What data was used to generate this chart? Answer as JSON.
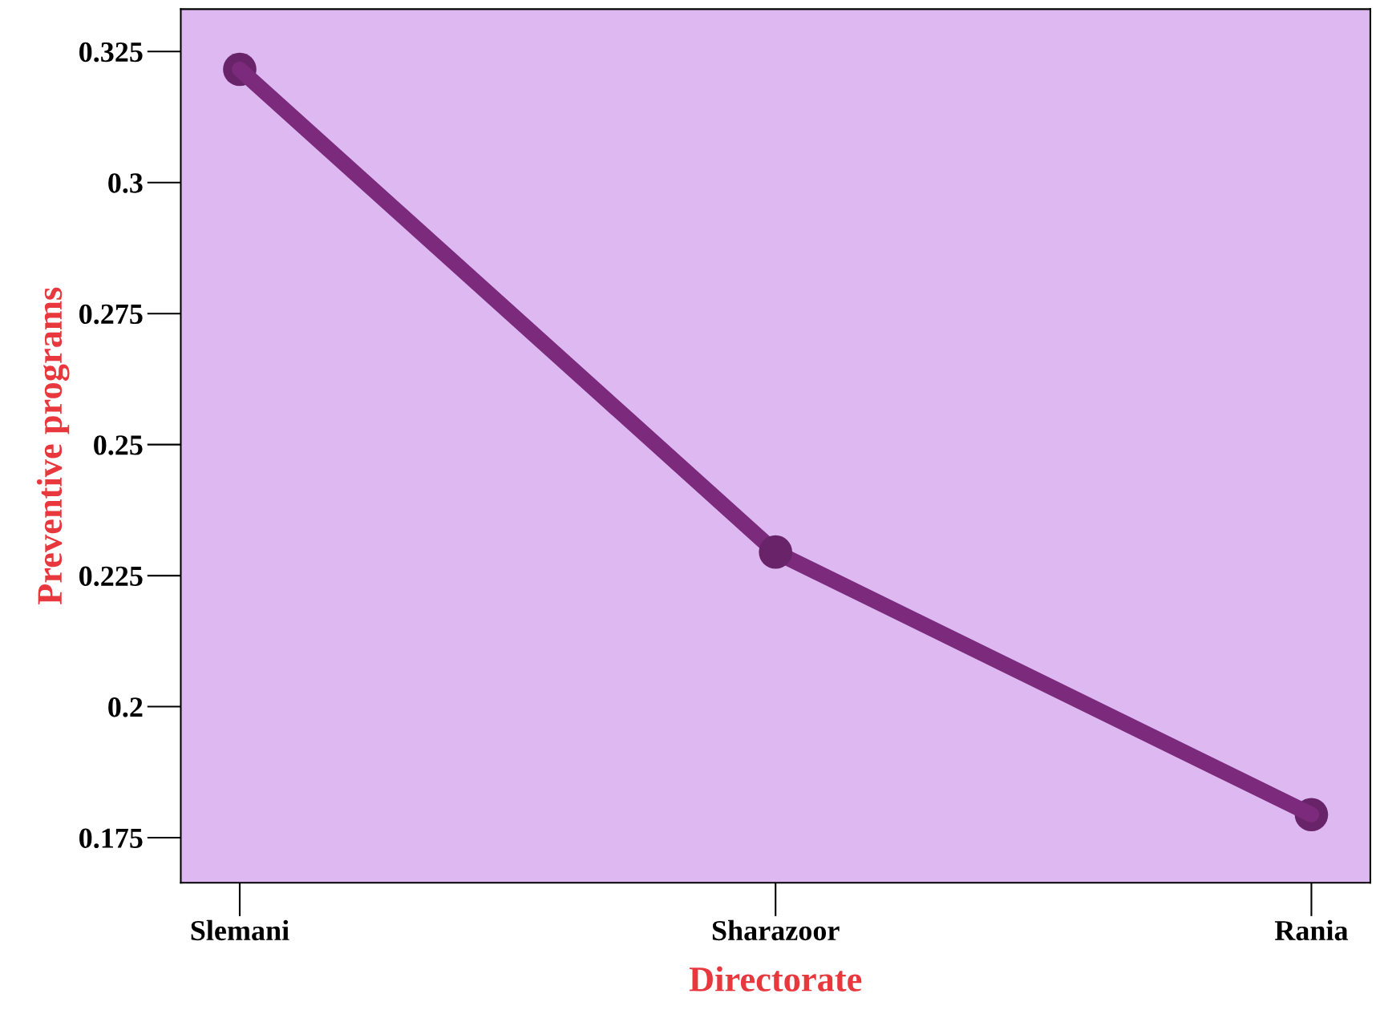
{
  "chart_data": {
    "type": "line",
    "xlabel": "Directorate",
    "ylabel": "Preventive programs",
    "categories": [
      "Slemani",
      "Sharazoor",
      "Rania"
    ],
    "series": [
      {
        "color": "#7b2a7c",
        "values": [
          0.3216,
          0.2295,
          0.1794
        ]
      }
    ],
    "ylim": [
      0.1664,
      0.3331
    ],
    "yticks": [
      0.175,
      0.2,
      0.225,
      0.25,
      0.275,
      0.3,
      0.325
    ],
    "marker": "circle",
    "line_style": "solid",
    "grid": false,
    "legend": false
  }
}
